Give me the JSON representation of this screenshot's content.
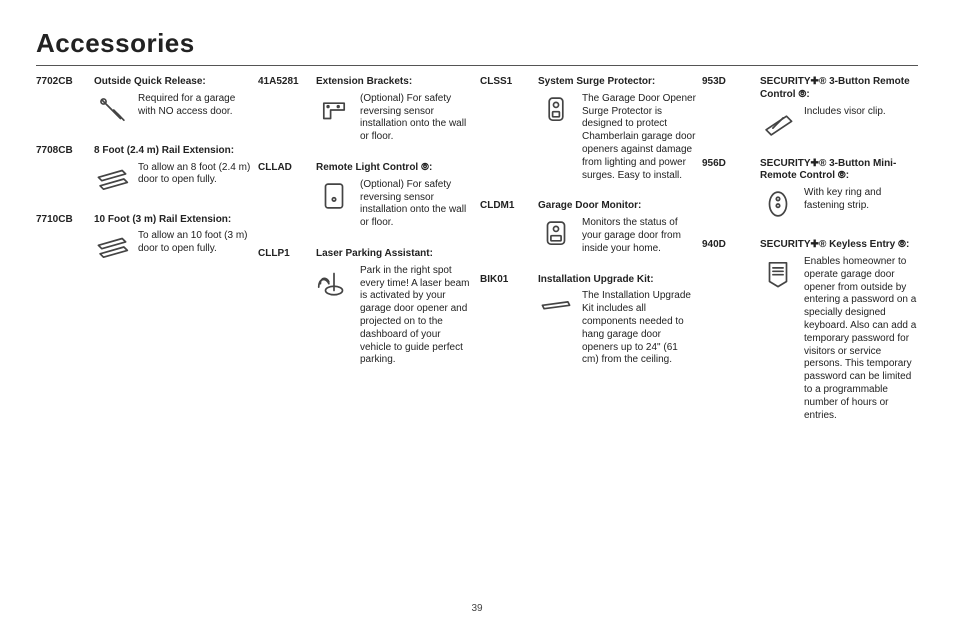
{
  "title": "Accessories",
  "page_number": "39",
  "columns": [
    [
      {
        "sku": "7702CB",
        "name": "Outside Quick Release:",
        "desc": "Required for a garage with NO access door.",
        "icon": "quick-release-icon"
      },
      {
        "sku": "7708CB",
        "name": "8 Foot (2.4 m) Rail Extension:",
        "desc": "To allow an 8 foot (2.4 m) door to open fully.",
        "icon": "rail-icon"
      },
      {
        "sku": "7710CB",
        "name": "10 Foot (3 m) Rail Extension:",
        "desc": "To allow an 10 foot (3 m) door to open fully.",
        "icon": "rail-icon"
      }
    ],
    [
      {
        "sku": "41A5281",
        "name": "Extension Brackets:",
        "desc": "(Optional) For safety reversing sensor installation onto the wall or floor.",
        "icon": "bracket-icon"
      },
      {
        "sku": "CLLAD",
        "name": "Remote Light Control ⦾:",
        "desc": "(Optional) For safety reversing sensor installation onto the wall or floor.",
        "icon": "light-control-icon"
      },
      {
        "sku": "CLLP1",
        "name": "Laser Parking Assistant:",
        "desc": "Park in the right spot every time! A laser beam is activated by your garage door opener and projected on to the dashboard of your vehicle to guide perfect parking.",
        "icon": "laser-icon"
      }
    ],
    [
      {
        "sku": "CLSS1",
        "name": "System Surge Protector:",
        "desc": "The Garage Door Opener Surge Protector is designed to protect Chamberlain garage door openers against damage from lighting and power surges. Easy to install.",
        "icon": "surge-icon"
      },
      {
        "sku": "CLDM1",
        "name": "Garage Door Monitor:",
        "desc": "Monitors the status of your garage door from inside your home.",
        "icon": "monitor-icon"
      },
      {
        "sku": "BIK01",
        "name": "Installation Upgrade Kit:",
        "desc": "The Installation Upgrade Kit includes all components needed to hang garage door openers up to 24\" (61 cm) from the ceiling.",
        "icon": "kit-icon"
      }
    ],
    [
      {
        "sku": "953D",
        "name": "SECURITY✚® 3-Button Remote Control ⦾:",
        "desc": "Includes visor clip.",
        "icon": "remote3-icon"
      },
      {
        "sku": "956D",
        "name": "SECURITY✚® 3-Button Mini-Remote Control ⦾:",
        "desc": "With key ring and fastening strip.",
        "icon": "miniremote-icon"
      },
      {
        "sku": "940D",
        "name": "SECURITY✚® Keyless Entry ⦾:",
        "desc": "Enables homeowner to operate garage door opener from outside by entering a password on a specially designed keyboard. Also can add a temporary password for visitors or service persons. This temporary password can be limited to a programmable number of hours or entries.",
        "icon": "keypad-icon"
      }
    ]
  ],
  "icons": {
    "quick-release-icon": "<svg viewBox='0 0 40 40'><path d='M8 8 L20 20 M14 14 L26 26 L30 30 M22 20 L30 28'/><circle cx='10' cy='10' r='3'/><path d='M26 24 L34 32'/></svg>",
    "rail-icon": "<svg viewBox='0 0 40 40'><path d='M4 18 L32 10 L36 14 L8 22 Z M6 28 L34 20 L38 24 L10 32 Z'/></svg>",
    "bracket-icon": "<svg viewBox='0 0 40 40'><path d='M8 30 L8 12 L32 12 L32 20 L16 20 L16 30 Z M12 16 a1 1 0 1 0 2 0 a1 1 0 1 0 -2 0 M24 16 a1 1 0 1 0 2 0 a1 1 0 1 0 -2 0'/></svg>",
    "light-control-icon": "<svg viewBox='0 0 40 40'><rect x='10' y='6' width='20' height='28' rx='3'/><circle cx='20' cy='24' r='2'/></svg>",
    "laser-icon": "<svg viewBox='0 0 40 40'><ellipse cx='20' cy='30' rx='10' ry='5'/><path d='M20 30 L20 10 M4 22 C4 14 12 14 14 20 M2 26 C2 16 10 14 14 22'/></svg>",
    "surge-icon": "<svg viewBox='0 0 40 40'><rect x='12' y='6' width='16' height='26' rx='4'/><circle cx='20' cy='14' r='3'/><rect x='16' y='22' width='8' height='6' rx='1'/></svg>",
    "monitor-icon": "<svg viewBox='0 0 40 40'><rect x='10' y='6' width='20' height='26' rx='4'/><circle cx='20' cy='14' r='3'/><rect x='14' y='22' width='12' height='6' rx='1'/></svg>",
    "kit-icon": "<svg viewBox='0 0 40 40'><path d='M4 18 L34 14 L36 18 L6 22 Z'/></svg>",
    "remote3-icon": "<svg viewBox='0 0 40 40'><path d='M6 28 L30 12 L36 18 L12 34 Z'/><path d='M14 26 L18 22 M18 22 L22 18 M22 18 L26 14'/></svg>",
    "miniremote-icon": "<svg viewBox='0 0 40 40'><ellipse cx='20' cy='20' rx='10' ry='14'/><circle cx='20' cy='14' r='2'/><circle cx='20' cy='22' r='2'/></svg>",
    "keypad-icon": "<svg viewBox='0 0 40 40'><path d='M10 8 L30 8 L30 30 L20 36 L10 30 Z'/><path d='M14 14 L26 14 M14 18 L26 18 M14 22 L26 22'/></svg>"
  }
}
